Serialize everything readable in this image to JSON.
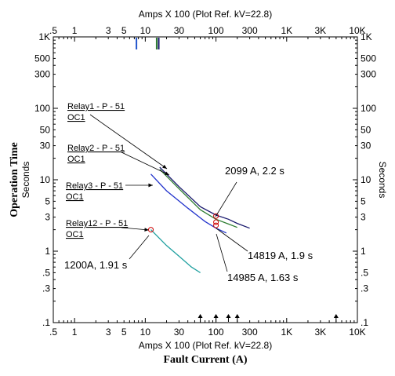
{
  "chart_data": {
    "type": "line",
    "scale": {
      "x": "log",
      "y": "log"
    },
    "xlim": [
      0.5,
      10000
    ],
    "ylim": [
      0.1,
      1000
    ],
    "x_ticks": [
      {
        "v": 0.5,
        "label": ".5"
      },
      {
        "v": 1,
        "label": "1"
      },
      {
        "v": 3,
        "label": "3"
      },
      {
        "v": 5,
        "label": "5"
      },
      {
        "v": 10,
        "label": "10"
      },
      {
        "v": 30,
        "label": "30"
      },
      {
        "v": 100,
        "label": "100"
      },
      {
        "v": 300,
        "label": "300"
      },
      {
        "v": 1000,
        "label": "1K"
      },
      {
        "v": 3000,
        "label": "3K"
      },
      {
        "v": 10000,
        "label": "10K"
      }
    ],
    "y_ticks": [
      {
        "v": 0.1,
        "label": ".1"
      },
      {
        "v": 0.3,
        "label": ".3"
      },
      {
        "v": 0.5,
        "label": ".5"
      },
      {
        "v": 1,
        "label": "1"
      },
      {
        "v": 3,
        "label": "3"
      },
      {
        "v": 5,
        "label": "5"
      },
      {
        "v": 10,
        "label": "10"
      },
      {
        "v": 30,
        "label": "30"
      },
      {
        "v": 50,
        "label": "50"
      },
      {
        "v": 100,
        "label": "100"
      },
      {
        "v": 300,
        "label": "300"
      },
      {
        "v": 500,
        "label": "500"
      },
      {
        "v": 1000,
        "label": "1K"
      }
    ],
    "x_axis_title_top": "Amps  X  100 (Plot Ref. kV=22.8)",
    "x_axis_title_bottom": "Amps  X  100 (Plot Ref. kV=22.8)",
    "xlabel": "Fault Current (A)",
    "ylabel": "Operation Time",
    "ylabel_sub": "Seconds",
    "ylabel_right": "Seconds",
    "series": [
      {
        "name": "Relay1 - P - 51",
        "subname": "OC1",
        "color": "#1a1a6e",
        "points": [
          [
            16,
            15
          ],
          [
            30,
            8
          ],
          [
            60,
            4.2
          ],
          [
            100,
            3.2
          ],
          [
            150,
            2.8
          ],
          [
            200,
            2.45
          ],
          [
            300,
            2.1
          ]
        ]
      },
      {
        "name": "Relay2 - P - 51",
        "subname": "OC1",
        "color": "#2e7d32",
        "points": [
          [
            16,
            14
          ],
          [
            30,
            7.5
          ],
          [
            60,
            3.8
          ],
          [
            100,
            2.8
          ],
          [
            150,
            2.4
          ],
          [
            200,
            2.15
          ]
        ]
      },
      {
        "name": "Relay3 - P - 51",
        "subname": "OC1",
        "color": "#2233cc",
        "points": [
          [
            12,
            12
          ],
          [
            20,
            7
          ],
          [
            40,
            4
          ],
          [
            70,
            2.6
          ],
          [
            100,
            2.1
          ],
          [
            140,
            1.8
          ]
        ]
      },
      {
        "name": "Relay12 - P - 51",
        "subname": "OC1",
        "color": "#20a0a0",
        "points": [
          [
            12,
            2
          ],
          [
            20,
            1.2
          ],
          [
            30,
            0.85
          ],
          [
            45,
            0.6
          ],
          [
            60,
            0.5
          ]
        ]
      }
    ],
    "markers": [
      {
        "x": 100,
        "y": 3.1,
        "color": "#cc0000"
      },
      {
        "x": 100,
        "y": 2.55,
        "color": "#cc0000"
      },
      {
        "x": 100,
        "y": 2.3,
        "color": "#cc0000"
      },
      {
        "x": 12,
        "y": 2.0,
        "color": "#cc0000"
      }
    ],
    "annotations": [
      {
        "text": "2099 A, 2.2 s"
      },
      {
        "text": "14819 A, 1.9 s"
      },
      {
        "text": "14985 A, 1.63 s"
      },
      {
        "text": "1200A, 1.91 s"
      }
    ],
    "top_ticks": [
      {
        "x": 7.5,
        "color": "#2255cc"
      },
      {
        "x": 14.5,
        "color": "#2e7d32"
      },
      {
        "x": 15.5,
        "color": "#1a1a6e"
      }
    ],
    "bottom_arrows": [
      60,
      100,
      150,
      200,
      5000
    ]
  }
}
